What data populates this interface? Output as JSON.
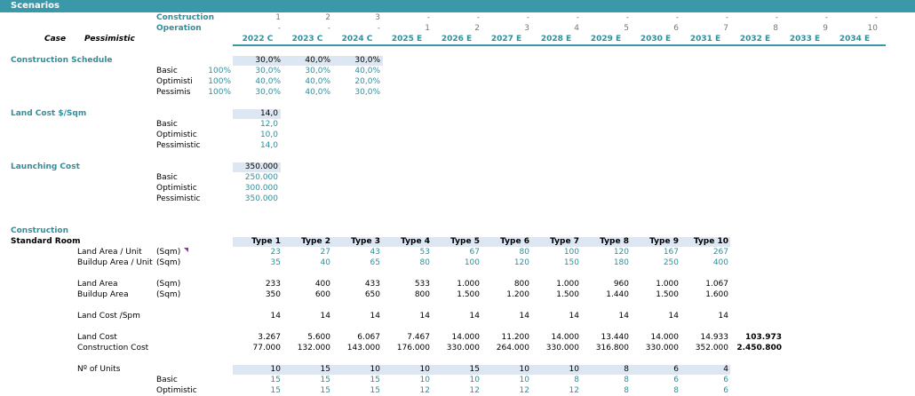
{
  "header": {
    "title": "Scenarios"
  },
  "timeline": {
    "construction_label": "Construction",
    "operation_label": "Operation",
    "case_label": "Case",
    "case_value": "Pessimistic",
    "construction": [
      "1",
      "2",
      "3",
      "-",
      "-",
      "-",
      "-",
      "-",
      "-",
      "-",
      "-",
      "-",
      "-"
    ],
    "operation": [
      "-",
      "-",
      "-",
      "1",
      "2",
      "3",
      "4",
      "5",
      "6",
      "7",
      "8",
      "9",
      "10"
    ],
    "years": [
      "2022 C",
      "2023 C",
      "2024 C",
      "2025 E",
      "2026 E",
      "2027 E",
      "2028 E",
      "2029 E",
      "2030 E",
      "2031 E",
      "2032 E",
      "2033 E",
      "2034 E"
    ]
  },
  "construction_schedule": {
    "title": "Construction Schedule",
    "active": [
      "30,0%",
      "40,0%",
      "30,0%"
    ],
    "rows": [
      {
        "label": "Basic",
        "pct": "100%",
        "values": [
          "30,0%",
          "30,0%",
          "40,0%"
        ]
      },
      {
        "label": "Optimisti",
        "pct": "100%",
        "values": [
          "40,0%",
          "40,0%",
          "20,0%"
        ]
      },
      {
        "label": "Pessimis",
        "pct": "100%",
        "values": [
          "30,0%",
          "40,0%",
          "30,0%"
        ]
      }
    ]
  },
  "land_cost": {
    "title": "Land Cost $/Sqm",
    "active": "14,0",
    "rows": [
      {
        "label": "Basic",
        "value": "12,0"
      },
      {
        "label": "Optimistic",
        "value": "10,0"
      },
      {
        "label": "Pessimistic",
        "value": "14,0"
      }
    ]
  },
  "launching_cost": {
    "title": "Launching Cost",
    "active": "350.000",
    "rows": [
      {
        "label": "Basic",
        "value": "250.000"
      },
      {
        "label": "Optimistic",
        "value": "300.000"
      },
      {
        "label": "Pessimistic",
        "value": "350.000"
      }
    ]
  },
  "construction": {
    "title": "Construction",
    "standard_room": "Standard Room",
    "types": [
      "Type 1",
      "Type 2",
      "Type 3",
      "Type 4",
      "Type 5",
      "Type 6",
      "Type 7",
      "Type 8",
      "Type 9",
      "Type 10"
    ],
    "rows": [
      {
        "label": "Land Area / Unit",
        "unit": "(Sqm)",
        "color": "blue",
        "values": [
          "23",
          "27",
          "43",
          "53",
          "67",
          "80",
          "100",
          "120",
          "167",
          "267"
        ]
      },
      {
        "label": "Buildup Area / Unit",
        "unit": "(Sqm)",
        "color": "blue",
        "values": [
          "35",
          "40",
          "65",
          "80",
          "100",
          "120",
          "150",
          "180",
          "250",
          "400"
        ]
      },
      {
        "label": "Land Area",
        "unit": "(Sqm)",
        "color": "black",
        "values": [
          "233",
          "400",
          "433",
          "533",
          "1.000",
          "800",
          "1.000",
          "960",
          "1.000",
          "1.067"
        ]
      },
      {
        "label": "Buildup Area",
        "unit": "(Sqm)",
        "color": "black",
        "values": [
          "350",
          "600",
          "650",
          "800",
          "1.500",
          "1.200",
          "1.500",
          "1.440",
          "1.500",
          "1.600"
        ]
      },
      {
        "label": "Land Cost /Spm",
        "unit": "",
        "color": "black",
        "values": [
          "14",
          "14",
          "14",
          "14",
          "14",
          "14",
          "14",
          "14",
          "14",
          "14"
        ]
      },
      {
        "label": "Land Cost",
        "unit": "",
        "color": "black",
        "values": [
          "3.267",
          "5.600",
          "6.067",
          "7.467",
          "14.000",
          "11.200",
          "14.000",
          "13.440",
          "14.000",
          "14.933"
        ],
        "total": "103.973"
      },
      {
        "label": "Construction Cost",
        "unit": "",
        "color": "black",
        "values": [
          "77.000",
          "132.000",
          "143.000",
          "176.000",
          "330.000",
          "264.000",
          "330.000",
          "316.800",
          "330.000",
          "352.000"
        ],
        "total": "2.450.800"
      }
    ],
    "units": {
      "label": "Nº of Units",
      "active": [
        "10",
        "15",
        "10",
        "10",
        "15",
        "10",
        "10",
        "8",
        "6",
        "4"
      ],
      "rows": [
        {
          "label": "Basic",
          "values": [
            "15",
            "15",
            "15",
            "10",
            "10",
            "10",
            "8",
            "8",
            "6",
            "6"
          ]
        },
        {
          "label": "Optimistic",
          "values": [
            "15",
            "15",
            "15",
            "12",
            "12",
            "12",
            "12",
            "8",
            "8",
            "6"
          ]
        }
      ]
    }
  }
}
